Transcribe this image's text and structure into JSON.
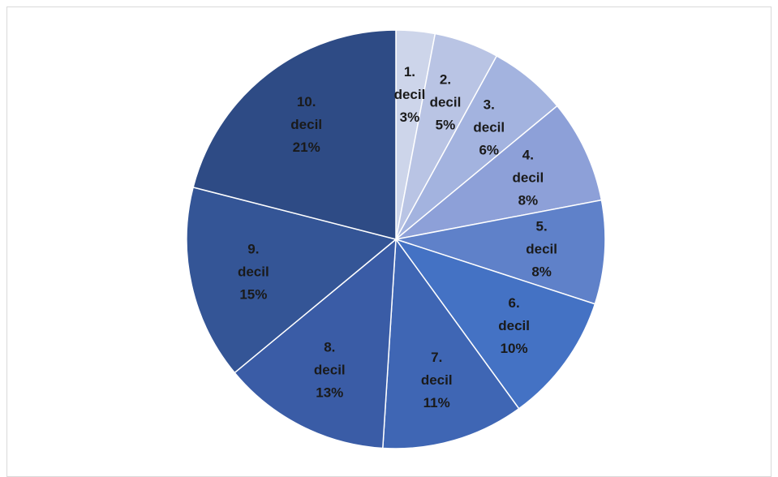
{
  "chart_data": {
    "type": "pie",
    "title": "",
    "start_angle_deg": 0,
    "direction": "clockwise",
    "slices": [
      {
        "name": "1.",
        "line2": "decil",
        "value": 3,
        "label": "3%",
        "color": "#cdd5ea"
      },
      {
        "name": "2.",
        "line2": "decil",
        "value": 5,
        "label": "5%",
        "color": "#b9c4e4"
      },
      {
        "name": "3.",
        "line2": "decil",
        "value": 6,
        "label": "6%",
        "color": "#a3b3df"
      },
      {
        "name": "4.",
        "line2": "decil",
        "value": 8,
        "label": "8%",
        "color": "#8da0d8"
      },
      {
        "name": "5.",
        "line2": "decil",
        "value": 8,
        "label": "8%",
        "color": "#5f81c9"
      },
      {
        "name": "6.",
        "line2": "decil",
        "value": 10,
        "label": "10%",
        "color": "#4472c4"
      },
      {
        "name": "7.",
        "line2": "decil",
        "value": 11,
        "label": "11%",
        "color": "#3f66b4"
      },
      {
        "name": "8.",
        "line2": "decil",
        "value": 13,
        "label": "13%",
        "color": "#3a5ca6"
      },
      {
        "name": "9.",
        "line2": "decil",
        "value": 15,
        "label": "15%",
        "color": "#345596"
      },
      {
        "name": "10.",
        "line2": "decil",
        "value": 21,
        "label": "21%",
        "color": "#2e4b85"
      }
    ]
  }
}
